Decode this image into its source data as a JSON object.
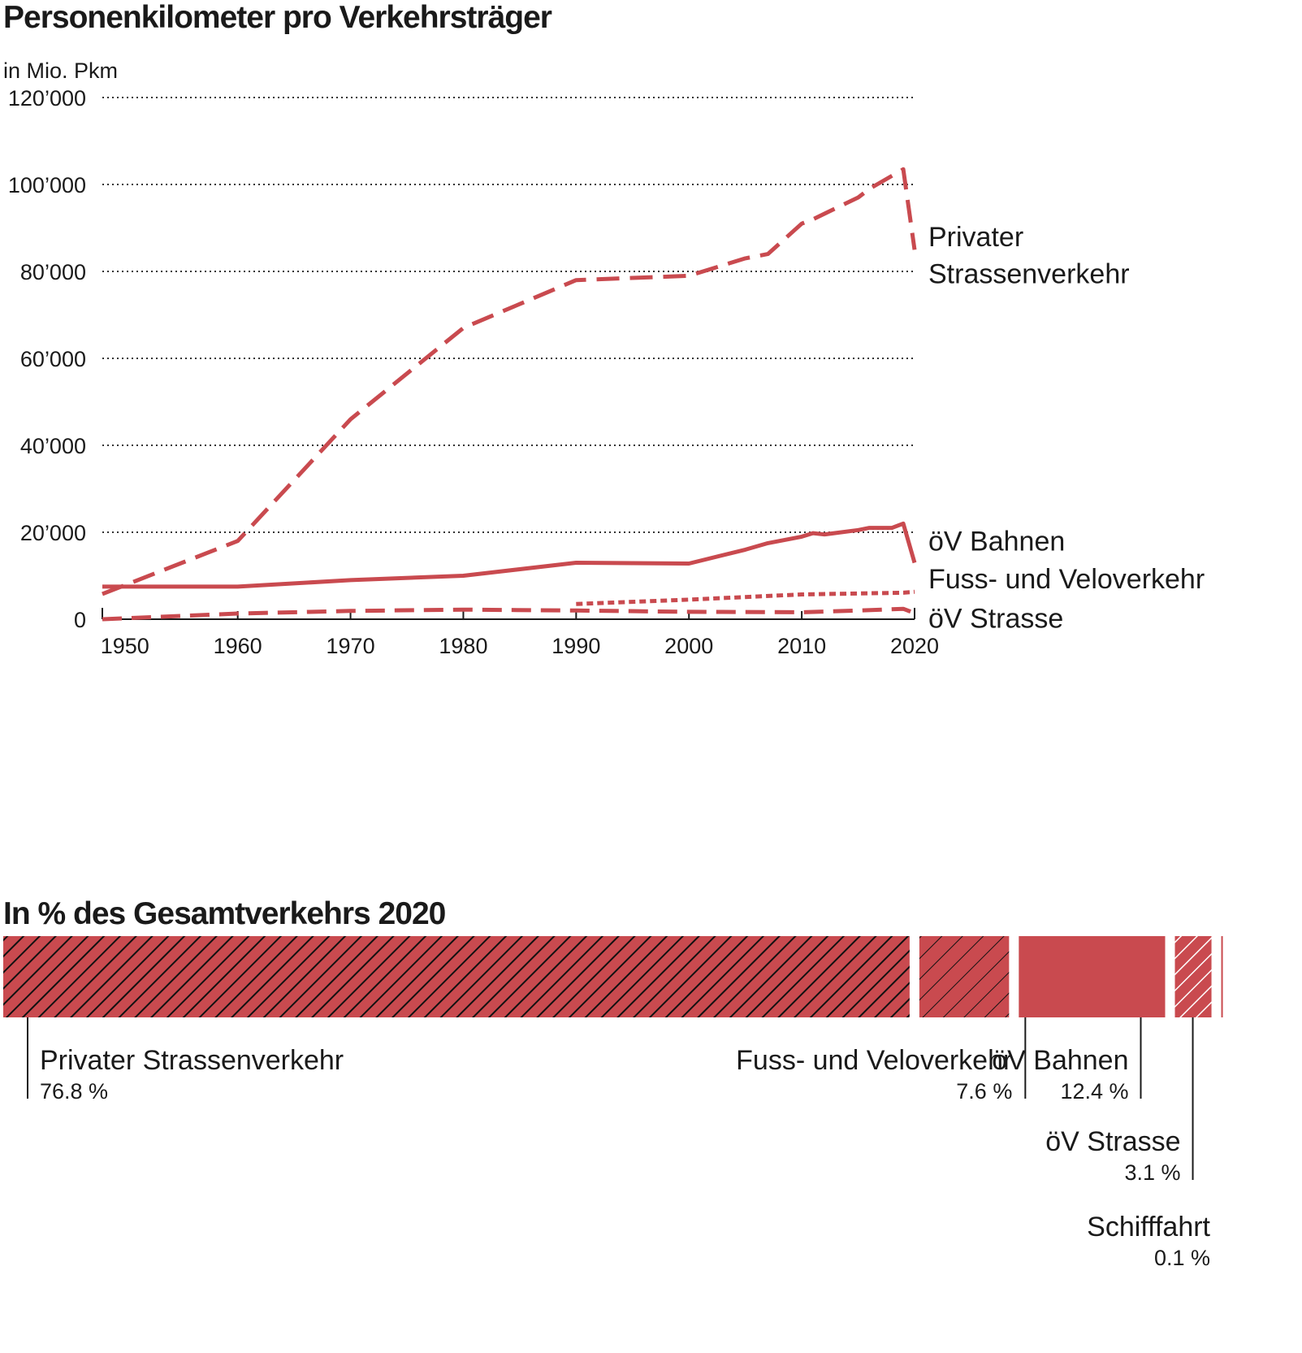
{
  "title": "Personenkilometer pro Verkehrsträger",
  "unit_label": "in Mio. Pkm",
  "chart_data": [
    {
      "type": "line",
      "title": "Personenkilometer pro Verkehrsträger",
      "ylabel": "in Mio. Pkm",
      "ylim": [
        0,
        120000
      ],
      "xlim": [
        1948,
        2020
      ],
      "grid": true,
      "y_ticks": [
        {
          "value": 0,
          "label": "0"
        },
        {
          "value": 20000,
          "label": "20’000"
        },
        {
          "value": 40000,
          "label": "40’000"
        },
        {
          "value": 60000,
          "label": "60’000"
        },
        {
          "value": 80000,
          "label": "80’000"
        },
        {
          "value": 100000,
          "label": "100’000"
        },
        {
          "value": 120000,
          "label": "120’000"
        }
      ],
      "x_ticks": [
        {
          "value": 1950,
          "label": "1950"
        },
        {
          "value": 1960,
          "label": "1960"
        },
        {
          "value": 1970,
          "label": "1970"
        },
        {
          "value": 1980,
          "label": "1980"
        },
        {
          "value": 1990,
          "label": "1990"
        },
        {
          "value": 2000,
          "label": "2000"
        },
        {
          "value": 2010,
          "label": "2010"
        },
        {
          "value": 2020,
          "label": "2020"
        }
      ],
      "series": [
        {
          "name": "Privater Strassenverkehr",
          "label_lines": [
            "Privater",
            "Strassenverkehr"
          ],
          "style": "dashed",
          "x": [
            1948,
            1960,
            1970,
            1980,
            1990,
            2000,
            2005,
            2007,
            2010,
            2011,
            2015,
            2016,
            2019,
            2020
          ],
          "y": [
            5800,
            18000,
            46000,
            67000,
            78000,
            79000,
            83000,
            84000,
            91000,
            92000,
            97000,
            99000,
            103500,
            85000
          ]
        },
        {
          "name": "öV Bahnen",
          "label_lines": [
            "öV Bahnen"
          ],
          "style": "solid",
          "x": [
            1948,
            1960,
            1970,
            1980,
            1990,
            2000,
            2005,
            2007,
            2010,
            2011,
            2012,
            2015,
            2016,
            2018,
            2019,
            2020
          ],
          "y": [
            7500,
            7500,
            9000,
            10000,
            13000,
            12800,
            16000,
            17500,
            19000,
            19800,
            19500,
            20500,
            21000,
            21000,
            22000,
            13000
          ]
        },
        {
          "name": "Fuss- und Veloverkehr",
          "label_lines": [
            "Fuss- und Veloverkehr"
          ],
          "style": "dotted",
          "x": [
            1990,
            2000,
            2010,
            2019,
            2020
          ],
          "y": [
            3500,
            4500,
            5700,
            6100,
            6300
          ]
        },
        {
          "name": "öV Strasse",
          "label_lines": [
            "öV Strasse"
          ],
          "style": "dashed-thin",
          "x": [
            1948,
            1960,
            1970,
            1980,
            1990,
            2000,
            2010,
            2015,
            2019,
            2020
          ],
          "y": [
            0,
            1300,
            1900,
            2200,
            2000,
            1700,
            1600,
            2000,
            2400,
            1400
          ]
        }
      ]
    },
    {
      "type": "bar",
      "stacked": "horizontal-100",
      "title": "In % des Gesamtverkehrs 2020",
      "segments": [
        {
          "name": "Privater Strassenverkehr",
          "value": 76.8,
          "value_label": "76.8 %",
          "pattern": "hatch-black"
        },
        {
          "name": "Fuss- und Veloverkehr",
          "value": 7.6,
          "value_label": "7.6 %",
          "pattern": "hatch-black-thin"
        },
        {
          "name": "öV Bahnen",
          "value": 12.4,
          "value_label": "12.4 %",
          "pattern": "solid"
        },
        {
          "name": "öV Strasse",
          "value": 3.1,
          "value_label": "3.1 %",
          "pattern": "hatch-white"
        },
        {
          "name": "Schifffahrt",
          "value": 0.1,
          "value_label": "0.1 %",
          "pattern": "solid"
        }
      ]
    }
  ],
  "colors": {
    "series": "#c94a4f",
    "text": "#1a1a1a",
    "grid": "#333333"
  }
}
